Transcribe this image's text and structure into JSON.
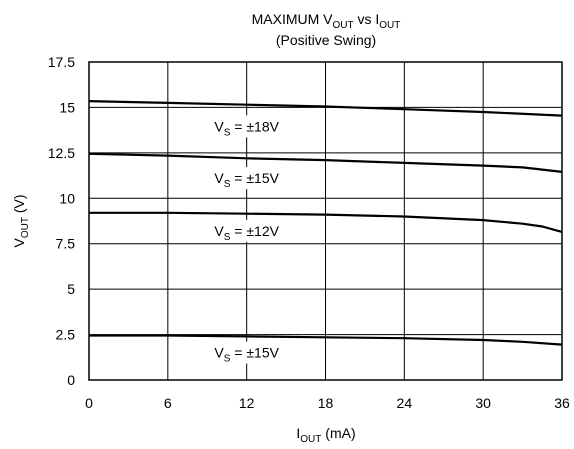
{
  "chart_data": {
    "type": "line",
    "title": {
      "line1_main": "MAXIMUM V",
      "line1_sub1": "OUT",
      "line1_mid": " vs I",
      "line1_sub2": "OUT",
      "line2": "(Positive Swing)"
    },
    "xlabel": {
      "main": "I",
      "sub": "OUT",
      "unit": " (mA)"
    },
    "ylabel": {
      "main": "V",
      "sub": "OUT",
      "unit": " (V)"
    },
    "xlim": [
      0,
      36
    ],
    "ylim": [
      0,
      17.5
    ],
    "x_ticks": [
      "0",
      "6",
      "12",
      "18",
      "24",
      "30",
      "36"
    ],
    "y_ticks": [
      "0",
      "2.5",
      "5",
      "7.5",
      "10",
      "12.5",
      "15",
      "17.5"
    ],
    "grid": true,
    "series": [
      {
        "points": [
          [
            0,
            15.35
          ],
          [
            6,
            15.25
          ],
          [
            12,
            15.15
          ],
          [
            18,
            15.05
          ],
          [
            24,
            14.9
          ],
          [
            30,
            14.75
          ],
          [
            36,
            14.55
          ]
        ],
        "label": {
          "main": "V",
          "sub": "S",
          "rest": " = ±18V",
          "x": 12,
          "y": 13.85
        }
      },
      {
        "points": [
          [
            0,
            12.45
          ],
          [
            6,
            12.35
          ],
          [
            12,
            12.2
          ],
          [
            18,
            12.1
          ],
          [
            24,
            11.95
          ],
          [
            30,
            11.8
          ],
          [
            33,
            11.7
          ],
          [
            36,
            11.45
          ]
        ],
        "label": {
          "main": "V",
          "sub": "S",
          "rest": " = ±15V",
          "x": 12,
          "y": 11.0
        }
      },
      {
        "points": [
          [
            0,
            9.2
          ],
          [
            6,
            9.2
          ],
          [
            12,
            9.15
          ],
          [
            18,
            9.1
          ],
          [
            24,
            9.0
          ],
          [
            30,
            8.8
          ],
          [
            33,
            8.6
          ],
          [
            34.5,
            8.45
          ],
          [
            36,
            8.15
          ]
        ],
        "label": {
          "main": "V",
          "sub": "S",
          "rest": " = ±12V",
          "x": 12,
          "y": 8.1
        }
      },
      {
        "points": [
          [
            0,
            2.45
          ],
          [
            6,
            2.45
          ],
          [
            12,
            2.4
          ],
          [
            18,
            2.35
          ],
          [
            24,
            2.3
          ],
          [
            30,
            2.2
          ],
          [
            33,
            2.1
          ],
          [
            36,
            1.95
          ]
        ],
        "label": {
          "main": "V",
          "sub": "S",
          "rest": " = ±15V",
          "x": 12,
          "y": 1.4
        }
      }
    ]
  }
}
